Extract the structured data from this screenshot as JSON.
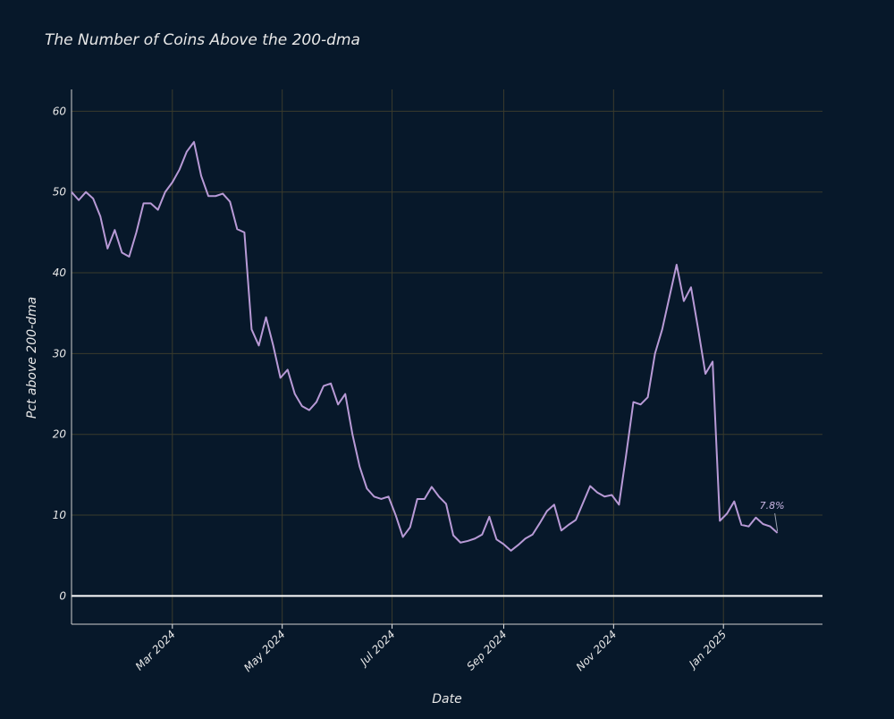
{
  "chart_data": {
    "type": "line",
    "title": "The Number of Coins Above the 200-dma",
    "x_label": "Date",
    "y_label": "Pct above 200-dma",
    "x": [
      "2024-01-05",
      "2024-01-09",
      "2024-01-13",
      "2024-01-17",
      "2024-01-21",
      "2024-01-25",
      "2024-01-29",
      "2024-02-02",
      "2024-02-06",
      "2024-02-10",
      "2024-02-14",
      "2024-02-18",
      "2024-02-22",
      "2024-02-26",
      "2024-03-01",
      "2024-03-05",
      "2024-03-09",
      "2024-03-13",
      "2024-03-17",
      "2024-03-21",
      "2024-03-25",
      "2024-03-29",
      "2024-04-02",
      "2024-04-06",
      "2024-04-10",
      "2024-04-14",
      "2024-04-18",
      "2024-04-22",
      "2024-04-26",
      "2024-04-30",
      "2024-05-04",
      "2024-05-08",
      "2024-05-12",
      "2024-05-16",
      "2024-05-20",
      "2024-05-24",
      "2024-05-28",
      "2024-06-01",
      "2024-06-05",
      "2024-06-09",
      "2024-06-13",
      "2024-06-17",
      "2024-06-21",
      "2024-06-25",
      "2024-06-29",
      "2024-07-03",
      "2024-07-07",
      "2024-07-11",
      "2024-07-15",
      "2024-07-19",
      "2024-07-23",
      "2024-07-27",
      "2024-07-31",
      "2024-08-04",
      "2024-08-08",
      "2024-08-12",
      "2024-08-16",
      "2024-08-20",
      "2024-08-24",
      "2024-08-28",
      "2024-09-01",
      "2024-09-05",
      "2024-09-09",
      "2024-09-13",
      "2024-09-17",
      "2024-09-21",
      "2024-09-25",
      "2024-09-29",
      "2024-10-03",
      "2024-10-07",
      "2024-10-11",
      "2024-10-15",
      "2024-10-19",
      "2024-10-23",
      "2024-10-27",
      "2024-10-31",
      "2024-11-04",
      "2024-11-08",
      "2024-11-12",
      "2024-11-16",
      "2024-11-20",
      "2024-11-24",
      "2024-11-28",
      "2024-12-02",
      "2024-12-06",
      "2024-12-10",
      "2024-12-14",
      "2024-12-18",
      "2024-12-22",
      "2024-12-26",
      "2024-12-30",
      "2025-01-03",
      "2025-01-07",
      "2025-01-11",
      "2025-01-15",
      "2025-01-19",
      "2025-01-23",
      "2025-01-27",
      "2025-01-31"
    ],
    "series": [
      {
        "name": "Pct above 200-dma",
        "color": "#b89ad6",
        "values": [
          50,
          49,
          50,
          49.2,
          47,
          43,
          45.3,
          42.5,
          42,
          45,
          48.6,
          48.6,
          47.8,
          50,
          51.2,
          52.8,
          55,
          56.2,
          52,
          49.5,
          49.5,
          49.8,
          48.8,
          45.4,
          45,
          33,
          31,
          34.5,
          31,
          27,
          28,
          25,
          23.5,
          23,
          24,
          26,
          26.3,
          23.7,
          25,
          20,
          16,
          13.3,
          12.3,
          12,
          12.3,
          10,
          7.3,
          8.5,
          12,
          12,
          13.5,
          12.3,
          11.4,
          7.5,
          6.6,
          6.8,
          7.1,
          7.6,
          9.8,
          7,
          6.4,
          5.6,
          6.3,
          7.1,
          7.6,
          9,
          10.5,
          11.3,
          8.1,
          8.8,
          9.4,
          11.5,
          13.6,
          12.8,
          12.3,
          12.5,
          11.3,
          17.5,
          24,
          23.7,
          24.6,
          30,
          33,
          37,
          41,
          36.5,
          38.2,
          33,
          27.5,
          29,
          9.3,
          10.2,
          11.7,
          8.8,
          8.6,
          9.7,
          8.9,
          8.6,
          7.8
        ]
      }
    ],
    "annotations": [
      {
        "text": "7.8%",
        "x": "2025-01-31",
        "y": 7.8
      }
    ],
    "xlim": [
      "2024-01-05",
      "2025-02-25"
    ],
    "xticks": [
      {
        "value": "2024-03-01",
        "label": "Mar 2024"
      },
      {
        "value": "2024-05-01",
        "label": "May 2024"
      },
      {
        "value": "2024-07-01",
        "label": "Jul 2024"
      },
      {
        "value": "2024-09-01",
        "label": "Sep 2024"
      },
      {
        "value": "2024-11-01",
        "label": "Nov 2024"
      },
      {
        "value": "2025-01-01",
        "label": "Jan 2025"
      }
    ],
    "ylim": [
      -3.5,
      62.7
    ],
    "yticks": [
      0,
      10,
      20,
      30,
      40,
      50,
      60
    ],
    "grid": true,
    "zeroline": true
  }
}
